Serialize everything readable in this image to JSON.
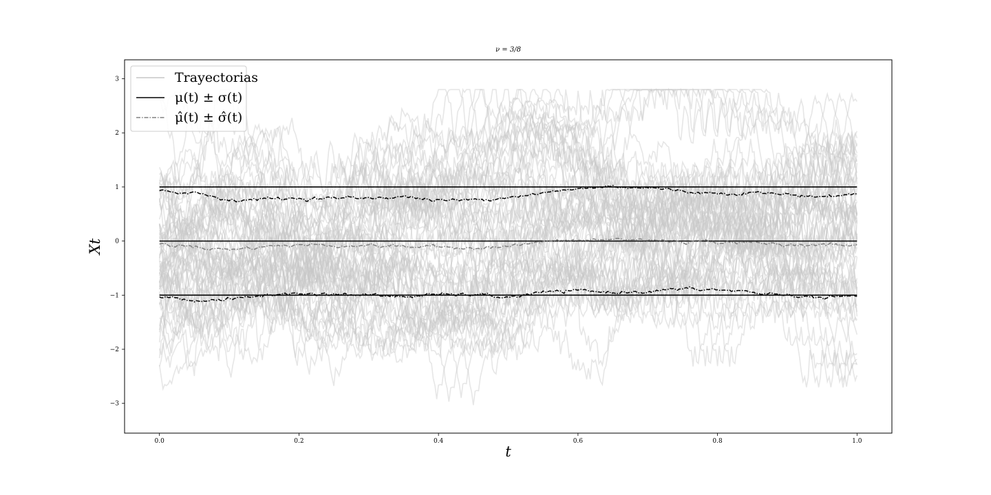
{
  "chart_data": {
    "type": "line",
    "title": "ν = 3/8",
    "xlabel": "t",
    "ylabel": "X_t",
    "xlim": [
      -0.05,
      1.05
    ],
    "ylim": [
      -3.55,
      3.35
    ],
    "xticks": [
      0.0,
      0.2,
      0.4,
      0.6,
      0.8,
      1.0
    ],
    "xtick_labels": [
      "0.0",
      "0.2",
      "0.4",
      "0.6",
      "0.8",
      "1.0"
    ],
    "yticks": [
      -3,
      -2,
      -1,
      0,
      1,
      2,
      3
    ],
    "ytick_labels": [
      "−3",
      "−2",
      "−1",
      "0",
      "1",
      "2",
      "3"
    ],
    "grid": false,
    "legend_position": "top-left",
    "legend": [
      {
        "label": "Trayectorias",
        "style": "solid",
        "color": "#d4d4d4"
      },
      {
        "label": "μ(t) ± σ(t)",
        "style": "solid",
        "color": "#000000"
      },
      {
        "label": "μ̂(t) ± σ̂(t)",
        "style": "dashdot",
        "color": "#808080"
      }
    ],
    "series": [
      {
        "name": "Trayectorias",
        "kind": "simulated sample paths",
        "count": 60,
        "color": "#c8c8c8",
        "range_y": [
          -3.2,
          2.8
        ]
      },
      {
        "name": "μ(t) ± σ(t)",
        "kind": "theoretical",
        "color": "#000000",
        "style": "solid",
        "lines": [
          {
            "x": [
              0.0,
              1.0
            ],
            "y": [
              1.0,
              1.0
            ]
          },
          {
            "x": [
              0.0,
              1.0
            ],
            "y": [
              0.0,
              0.0
            ]
          },
          {
            "x": [
              0.0,
              1.0
            ],
            "y": [
              -1.0,
              -1.0
            ]
          }
        ]
      },
      {
        "name": "μ̂(t) ± σ̂(t)",
        "kind": "empirical",
        "color": "#808080",
        "style": "dashdot",
        "x": [
          0.0,
          0.05,
          0.1,
          0.15,
          0.2,
          0.25,
          0.3,
          0.35,
          0.4,
          0.45,
          0.5,
          0.55,
          0.6,
          0.65,
          0.7,
          0.75,
          0.8,
          0.85,
          0.9,
          0.95,
          1.0
        ],
        "upper": [
          0.92,
          0.9,
          0.76,
          0.78,
          0.79,
          0.79,
          0.8,
          0.82,
          0.75,
          0.76,
          0.82,
          0.88,
          0.97,
          1.01,
          0.99,
          0.92,
          0.88,
          0.9,
          0.86,
          0.82,
          0.87
        ],
        "mean": [
          -0.06,
          -0.1,
          -0.16,
          -0.1,
          -0.07,
          -0.08,
          -0.08,
          -0.1,
          -0.11,
          -0.12,
          -0.1,
          -0.01,
          0.01,
          0.03,
          0.02,
          -0.01,
          -0.01,
          -0.04,
          -0.06,
          -0.07,
          -0.08
        ],
        "lower": [
          -1.02,
          -1.1,
          -1.08,
          -1.0,
          -0.97,
          -0.98,
          -1.0,
          -1.03,
          -0.99,
          -0.99,
          -1.04,
          -0.95,
          -0.92,
          -0.95,
          -0.93,
          -0.89,
          -0.9,
          -0.95,
          -1.0,
          -1.05,
          -1.02
        ]
      }
    ]
  }
}
